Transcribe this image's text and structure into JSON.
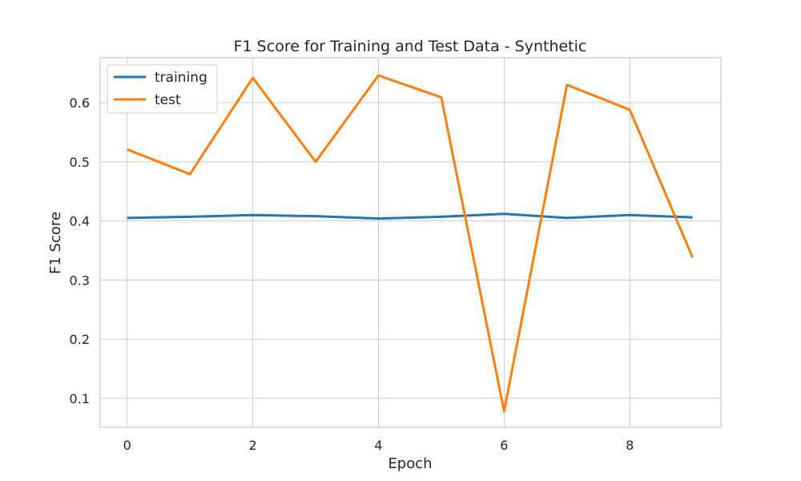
{
  "chart_data": {
    "type": "line",
    "title": "F1 Score for Training and Test Data - Synthetic",
    "xlabel": "Epoch",
    "ylabel": "F1 Score",
    "x": [
      0,
      1,
      2,
      3,
      4,
      5,
      6,
      7,
      8,
      9
    ],
    "xlim": [
      -0.43,
      9.45
    ],
    "ylim": [
      0.051,
      0.676
    ],
    "xticks": [
      0,
      2,
      4,
      6,
      8
    ],
    "yticks": [
      0.1,
      0.2,
      0.3,
      0.4,
      0.5,
      0.6
    ],
    "xtick_labels": [
      "0",
      "2",
      "4",
      "6",
      "8"
    ],
    "ytick_labels": [
      "0.1",
      "0.2",
      "0.3",
      "0.4",
      "0.5",
      "0.6"
    ],
    "grid": true,
    "legend_position": "top-left",
    "series": [
      {
        "name": "training",
        "color": "#1f77b4",
        "values": [
          0.405,
          0.407,
          0.41,
          0.408,
          0.404,
          0.407,
          0.412,
          0.405,
          0.41,
          0.406
        ]
      },
      {
        "name": "test",
        "color": "#ff7f0e",
        "values": [
          0.521,
          0.479,
          0.642,
          0.5,
          0.646,
          0.609,
          0.078,
          0.63,
          0.588,
          0.338
        ]
      }
    ]
  }
}
